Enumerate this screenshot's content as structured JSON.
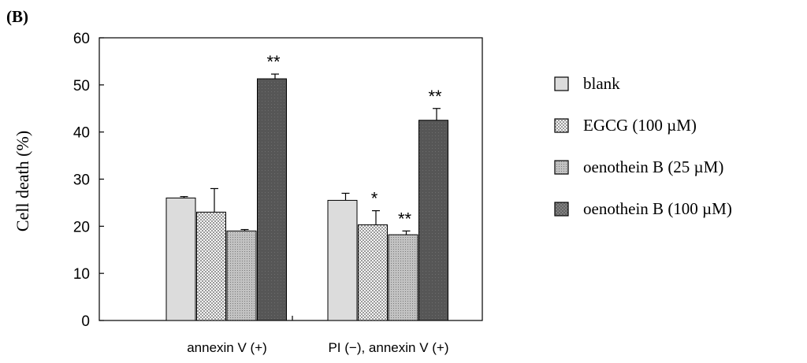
{
  "panel_label": "(B)",
  "chart_data": {
    "type": "bar",
    "title": "",
    "xlabel": "",
    "ylabel": "Cell death (%)",
    "ylim": [
      0,
      60
    ],
    "yticks": [
      0,
      10,
      20,
      30,
      40,
      50,
      60
    ],
    "categories": [
      "annexin V (+)",
      "PI (−), annexin V (+)"
    ],
    "series": [
      {
        "name": "blank",
        "values": [
          26,
          25.5
        ],
        "errors": [
          0.3,
          1.5
        ],
        "significance": [
          "",
          ""
        ],
        "color": "#dcdcdc",
        "pattern": "plain"
      },
      {
        "name": "EGCG (100 µM)",
        "values": [
          23,
          20.3
        ],
        "errors": [
          5,
          3
        ],
        "significance": [
          "",
          "*"
        ],
        "color": "#f2f2f2",
        "pattern": "checker"
      },
      {
        "name": "oenothein B (25 µM)",
        "values": [
          19,
          18.2
        ],
        "errors": [
          0.3,
          0.8
        ],
        "significance": [
          "",
          "**"
        ],
        "color": "#b3b3b3",
        "pattern": "dots"
      },
      {
        "name": "oenothein B (100 µM)",
        "values": [
          51.3,
          42.5
        ],
        "errors": [
          1,
          2.5
        ],
        "significance": [
          "**",
          "**"
        ],
        "color": "#555555",
        "pattern": "dark-cross"
      }
    ],
    "grid": false,
    "legend_position": "right"
  }
}
